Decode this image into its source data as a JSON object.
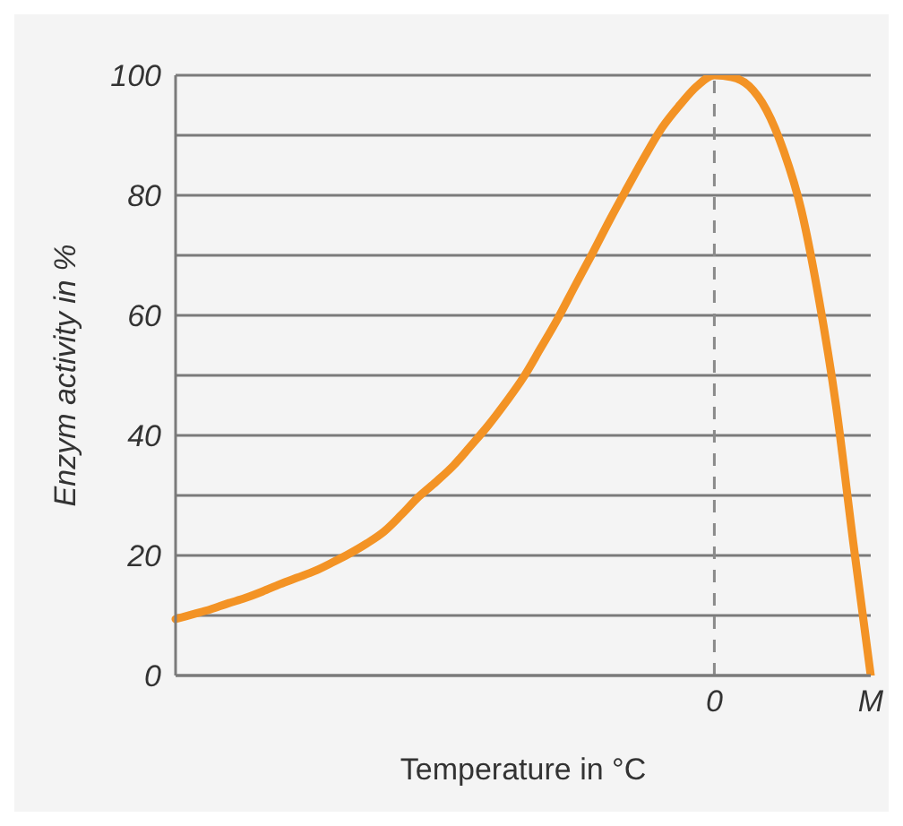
{
  "chart_data": {
    "type": "line",
    "xlabel": "Temperature in °C",
    "ylabel": "Enzym activity in %",
    "categories": [
      null,
      null,
      null,
      null,
      null,
      null,
      null,
      null,
      null,
      null,
      null,
      null,
      null,
      null,
      null,
      null,
      null,
      null,
      null,
      null,
      null,
      null,
      null,
      null,
      null,
      null,
      null,
      null,
      null,
      null,
      null,
      "0",
      null,
      null,
      null,
      null,
      null,
      null,
      null,
      null,
      "M"
    ],
    "series": [
      {
        "color": "#f39325",
        "values": [
          9.4,
          10.2,
          11,
          12,
          12.9,
          14,
          15.2,
          16.3,
          17.4,
          18.8,
          20.3,
          22,
          24,
          26.8,
          29.8,
          32.3,
          35,
          38.3,
          41.7,
          45.5,
          49.6,
          54.5,
          59.5,
          65,
          70.4,
          76,
          81.3,
          86.5,
          91.3,
          95,
          98.2,
          100,
          99.7,
          98.2,
          94.2,
          87.3,
          77.6,
          63,
          45,
          22,
          0
        ]
      }
    ],
    "ylim": [
      0,
      100
    ],
    "yticks": [
      0,
      {
        "value": 10,
        "label": null
      },
      20,
      {
        "value": 30,
        "label": null
      },
      40,
      {
        "value": 50,
        "label": null
      },
      60,
      {
        "value": 70,
        "label": null
      },
      80,
      {
        "value": 90,
        "label": null
      },
      100
    ],
    "grid": "y",
    "legend": false,
    "marker": "none",
    "line_style": "solid",
    "ref_lines": [
      {
        "axis": "x",
        "value": "0",
        "color": "#8a8a8a",
        "line_style": "dashed"
      }
    ]
  }
}
